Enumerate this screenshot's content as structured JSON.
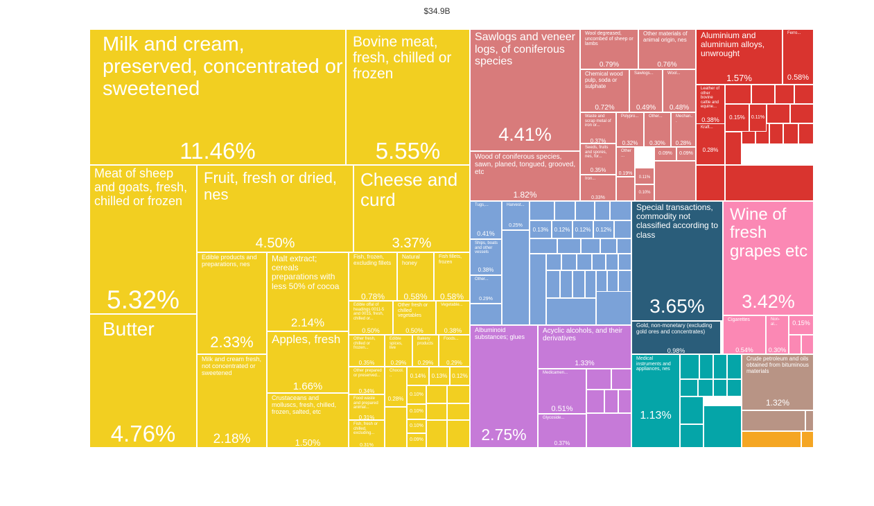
{
  "chart_data": {
    "type": "treemap",
    "title": "$34.9B",
    "colors": {
      "animal_veg": "#f2cf21",
      "plywood": "#d87b7b",
      "metals": "#d9342f",
      "machines": "#7ba2d8",
      "special": "#2a5d7a",
      "wine": "#fb88b4",
      "chemicals": "#c67ad8",
      "instruments": "#05a5a8",
      "mineral": "#b89485",
      "orange": "#f5a623",
      "stone": "#2a5d7a"
    },
    "items": [
      {
        "id": "milk",
        "label": "Milk and cream, preserved, concentrated or sweetened",
        "pct": "11.46%",
        "group": "animal_veg"
      },
      {
        "id": "bovine",
        "label": "Bovine meat, fresh, chilled or frozen",
        "pct": "5.55%",
        "group": "animal_veg"
      },
      {
        "id": "sheep",
        "label": "Meat of sheep and goats, fresh, chilled or frozen",
        "pct": "5.32%",
        "group": "animal_veg"
      },
      {
        "id": "butter",
        "label": "Butter",
        "pct": "4.76%",
        "group": "animal_veg"
      },
      {
        "id": "fruit",
        "label": "Fruit, fresh or dried, nes",
        "pct": "4.50%",
        "group": "animal_veg"
      },
      {
        "id": "cheese",
        "label": "Cheese and curd",
        "pct": "3.37%",
        "group": "animal_veg"
      },
      {
        "id": "edible",
        "label": "Edible products and preparations, nes",
        "pct": "2.33%",
        "group": "animal_veg"
      },
      {
        "id": "milkfresh",
        "label": "Milk and cream fresh, not concentrated or sweetened",
        "pct": "2.18%",
        "group": "animal_veg"
      },
      {
        "id": "malt",
        "label": "Malt extract; cereals preparations with less 50% of cocoa",
        "pct": "2.14%",
        "group": "animal_veg"
      },
      {
        "id": "apples",
        "label": "Apples, fresh",
        "pct": "1.66%",
        "group": "animal_veg"
      },
      {
        "id": "crust",
        "label": "Crustaceans and molluscs, fresh, chilled, frozen, salted, etc",
        "pct": "1.50%",
        "group": "animal_veg"
      },
      {
        "id": "fishfrozen",
        "label": "Fish, frozen, excluding fillets",
        "pct": "0.78%",
        "group": "animal_veg"
      },
      {
        "id": "honey",
        "label": "Natural honey",
        "pct": "0.58%",
        "group": "animal_veg"
      },
      {
        "id": "fillets",
        "label": "Fish fillets, frozen",
        "pct": "0.58%",
        "group": "animal_veg"
      },
      {
        "id": "offal",
        "label": "Edible offal of headings 0011-5 and 0015, fresh, chilled or...",
        "pct": "0.50%",
        "group": "animal_veg"
      },
      {
        "id": "veg",
        "label": "Other fresh or chilled vegetables",
        "pct": "0.50%",
        "group": "animal_veg"
      },
      {
        "id": "vegetable",
        "label": "Vegetable...",
        "pct": "0.38%",
        "group": "animal_veg"
      },
      {
        "id": "fishchill",
        "label": "Other fresh, chilled or frozen...",
        "pct": "0.35%",
        "group": "animal_veg"
      },
      {
        "id": "spices",
        "label": "Edible spices, live",
        "pct": "0.29%",
        "group": "animal_veg"
      },
      {
        "id": "bakery",
        "label": "Bakery products",
        "pct": "0.29%",
        "group": "animal_veg"
      },
      {
        "id": "foods",
        "label": "Foods...",
        "pct": "0.29%",
        "group": "animal_veg"
      },
      {
        "id": "otherprep",
        "label": "Other prepared or preserved...",
        "pct": "0.34%",
        "group": "animal_veg"
      },
      {
        "id": "chocol",
        "label": "Chocol...",
        "pct": "0.28%",
        "group": "animal_veg"
      },
      {
        "id": "s014",
        "label": "",
        "pct": "0.14%",
        "group": "animal_veg"
      },
      {
        "id": "s013",
        "label": "",
        "pct": "0.13%",
        "group": "animal_veg"
      },
      {
        "id": "s012",
        "label": "",
        "pct": "0.12%",
        "group": "animal_veg"
      },
      {
        "id": "foodwaste",
        "label": "Food waste and prepared animal...",
        "pct": "0.31%",
        "group": "animal_veg"
      },
      {
        "id": "fishfresh",
        "label": "Fish, fresh or chilled, excluding...",
        "pct": "0.31%",
        "group": "animal_veg"
      },
      {
        "id": "s010a",
        "label": "",
        "pct": "0.10%",
        "group": "animal_veg"
      },
      {
        "id": "s010b",
        "label": "",
        "pct": "0.10%",
        "group": "animal_veg"
      },
      {
        "id": "s010c",
        "label": "",
        "pct": "0.10%",
        "group": "animal_veg"
      },
      {
        "id": "s009",
        "label": "",
        "pct": "0.09%",
        "group": "animal_veg"
      },
      {
        "id": "sawlogs",
        "label": "Sawlogs and veneer logs, of coniferous species",
        "pct": "4.41%",
        "group": "plywood"
      },
      {
        "id": "woodsawn",
        "label": "Wood of coniferous species, sawn, planed, tongued, grooved, etc",
        "pct": "1.82%",
        "group": "plywood"
      },
      {
        "id": "wool",
        "label": "Wool degreased, uncombed of sheep or lambs",
        "pct": "0.79%",
        "group": "plywood"
      },
      {
        "id": "othermat",
        "label": "Other materials of animal origin, nes",
        "pct": "0.76%",
        "group": "plywood"
      },
      {
        "id": "pulp",
        "label": "Chemical wood pulp, soda or sulphate",
        "pct": "0.72%",
        "group": "plywood"
      },
      {
        "id": "sawlogs2",
        "label": "Sawlogs...",
        "pct": "0.49%",
        "group": "plywood"
      },
      {
        "id": "wool2",
        "label": "Wool...",
        "pct": "0.48%",
        "group": "plywood"
      },
      {
        "id": "scrap",
        "label": "Waste and scrap metal of iron or...",
        "pct": "0.37%",
        "group": "plywood"
      },
      {
        "id": "polyp",
        "label": "Polypro...",
        "pct": "0.32%",
        "group": "plywood"
      },
      {
        "id": "other1",
        "label": "Other...",
        "pct": "0.30%",
        "group": "plywood"
      },
      {
        "id": "mechan",
        "label": "Mechan...",
        "pct": "0.28%",
        "group": "plywood"
      },
      {
        "id": "seeds",
        "label": "Seeds, fruits and spores, nes, for...",
        "pct": "0.35%",
        "group": "plywood"
      },
      {
        "id": "other2",
        "label": "Other...",
        "pct": "0.19%",
        "group": "plywood"
      },
      {
        "id": "p011",
        "label": "",
        "pct": "0.11%",
        "group": "plywood"
      },
      {
        "id": "p009a",
        "label": "",
        "pct": "0.09%",
        "group": "plywood"
      },
      {
        "id": "p009b",
        "label": "",
        "pct": "0.09%",
        "group": "plywood"
      },
      {
        "id": "iron",
        "label": "Iron...",
        "pct": "0.33%",
        "group": "plywood"
      },
      {
        "id": "p010",
        "label": "",
        "pct": "0.10%",
        "group": "plywood"
      },
      {
        "id": "alu",
        "label": "Aluminium and aluminium alloys, unwrought",
        "pct": "1.57%",
        "group": "metals"
      },
      {
        "id": "ferro",
        "label": "Ferro...",
        "pct": "0.58%",
        "group": "metals"
      },
      {
        "id": "leather",
        "label": "Leather of other bovine cattle and equine...",
        "pct": "0.38%",
        "group": "metals"
      },
      {
        "id": "m015",
        "label": "",
        "pct": "0.15%",
        "group": "metals"
      },
      {
        "id": "m011",
        "label": "",
        "pct": "0.11%",
        "group": "metals"
      },
      {
        "id": "kraft",
        "label": "Kraft...",
        "pct": "0.28%",
        "group": "metals"
      },
      {
        "id": "tugs",
        "label": "Tugs,...",
        "pct": "0.41%",
        "group": "machines"
      },
      {
        "id": "harvest",
        "label": "Harvest...",
        "pct": "0.25%",
        "group": "machines"
      },
      {
        "id": "mc013",
        "label": "",
        "pct": "0.13%",
        "group": "machines"
      },
      {
        "id": "mc012a",
        "label": "",
        "pct": "0.12%",
        "group": "machines"
      },
      {
        "id": "mc012b",
        "label": "",
        "pct": "0.12%",
        "group": "machines"
      },
      {
        "id": "mc012c",
        "label": "",
        "pct": "0.12%",
        "group": "machines"
      },
      {
        "id": "ships",
        "label": "Ships, boats and other vessels",
        "pct": "0.38%",
        "group": "machines"
      },
      {
        "id": "othermc",
        "label": "Other...",
        "pct": "0.29%",
        "group": "machines"
      },
      {
        "id": "special",
        "label": "Special transactions, commodity not classified according to class",
        "pct": "3.65%",
        "group": "special"
      },
      {
        "id": "gold",
        "label": "Gold, non-monetary (excluding gold ores and concentrates)",
        "pct": "0.98%",
        "group": "special"
      },
      {
        "id": "wine",
        "label": "Wine of fresh grapes etc",
        "pct": "3.42%",
        "group": "wine"
      },
      {
        "id": "cigs",
        "label": "Cigarettes",
        "pct": "0.54%",
        "group": "wine"
      },
      {
        "id": "nonal",
        "label": "Non-al...",
        "pct": "0.30%",
        "group": "wine"
      },
      {
        "id": "w015",
        "label": "",
        "pct": "0.15%",
        "group": "wine"
      },
      {
        "id": "albumin",
        "label": "Albuminoid substances; glues",
        "pct": "2.75%",
        "group": "chemicals"
      },
      {
        "id": "acyclic",
        "label": "Acyclic alcohols, and their derivatives",
        "pct": "1.33%",
        "group": "chemicals"
      },
      {
        "id": "medicam",
        "label": "Medicamen...",
        "pct": "0.51%",
        "group": "chemicals"
      },
      {
        "id": "glycosid",
        "label": "Glycoside...",
        "pct": "0.37%",
        "group": "chemicals"
      },
      {
        "id": "medical",
        "label": "Medical instruments and appliances, nes",
        "pct": "1.13%",
        "group": "instruments"
      },
      {
        "id": "crude",
        "label": "Crude petroleum and oils obtained from bituminous materials",
        "pct": "1.32%",
        "group": "mineral"
      }
    ]
  }
}
